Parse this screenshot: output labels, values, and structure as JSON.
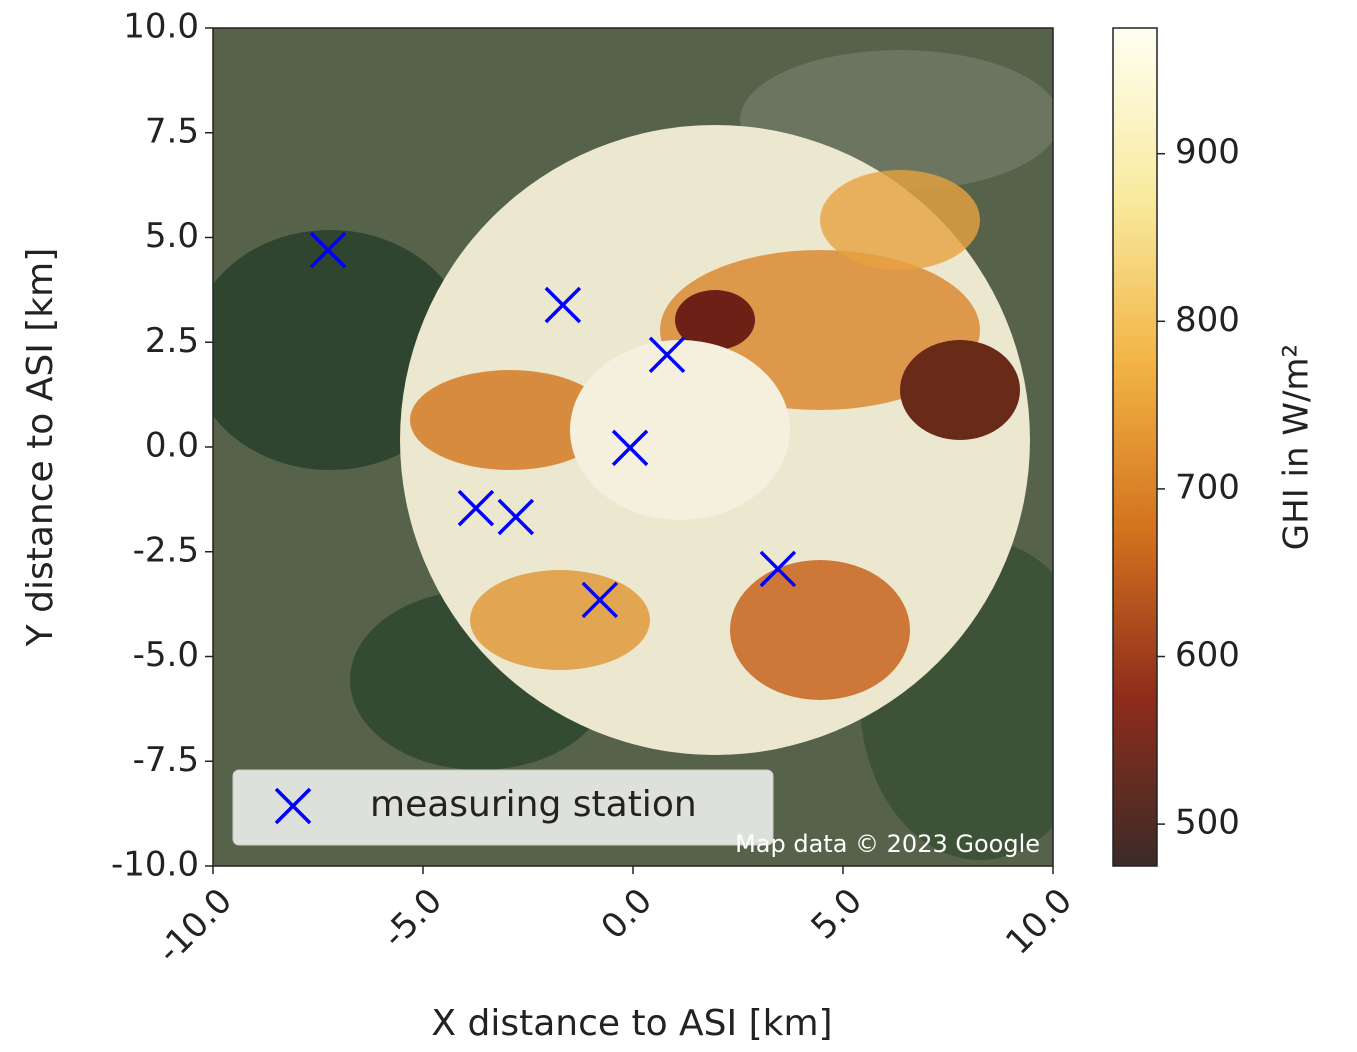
{
  "chart_data": {
    "type": "scatter",
    "xlabel": "X distance to ASI [km]",
    "ylabel": "Y distance to ASI [km]",
    "xlim": [
      -10,
      10
    ],
    "ylim": [
      -10,
      10
    ],
    "xticks": [
      {
        "value": -10,
        "label": "-10.0"
      },
      {
        "value": -5,
        "label": "-5.0"
      },
      {
        "value": 0,
        "label": "0.0"
      },
      {
        "value": 5,
        "label": "5.0"
      },
      {
        "value": 10,
        "label": "10.0"
      }
    ],
    "yticks": [
      {
        "value": -10,
        "label": "-10.0"
      },
      -7.5,
      {
        "value": -5,
        "label": "-5.0"
      },
      -2.5,
      {
        "value": 0,
        "label": "0.0"
      },
      2.5,
      {
        "value": 5,
        "label": "5.0"
      },
      7.5,
      {
        "value": 10,
        "label": "10.0"
      }
    ],
    "series": [
      {
        "name": "measuring station",
        "color": "#0000ff",
        "marker": "x",
        "x": [
          -7.26,
          -1.67,
          0.81,
          -0.07,
          -3.74,
          -2.79,
          -0.79,
          3.45
        ],
        "values": [
          4.7,
          3.39,
          2.2,
          -0.02,
          -1.46,
          -1.67,
          -3.65,
          -2.91
        ]
      }
    ],
    "legend": "lower left",
    "annotation": "Map data © 2023 Google",
    "colorbar": {
      "label": "GHI in W/m²",
      "lim": [
        475,
        975
      ],
      "ticks": [
        500,
        600,
        700,
        800,
        900
      ],
      "colors": [
        "#3b2b27",
        "#8e2c1c",
        "#d2721e",
        "#f2b445",
        "#f8eba0",
        "#fffff2"
      ]
    }
  }
}
